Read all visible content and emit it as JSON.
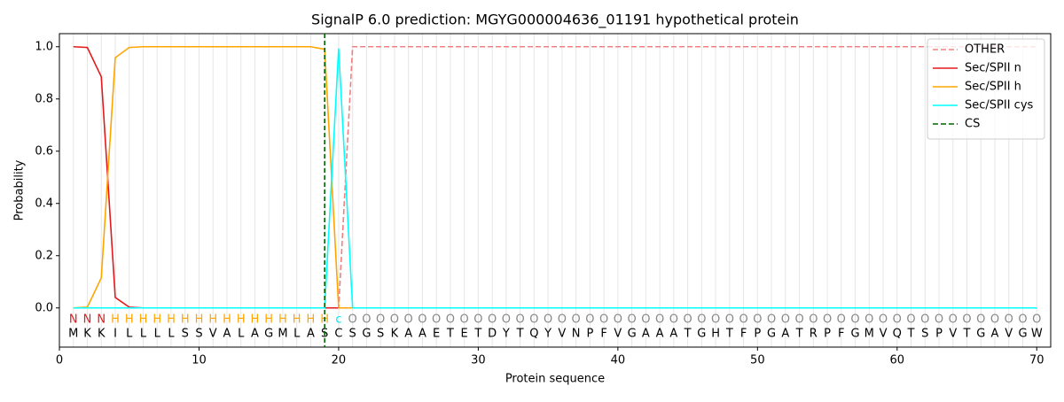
{
  "chart_data": {
    "type": "line",
    "title": "SignalP 6.0 prediction: MGYG000004636_01191 hypothetical protein",
    "xlabel": "Protein sequence",
    "ylabel": "Probability",
    "x": [
      1,
      2,
      3,
      4,
      5,
      6,
      7,
      8,
      9,
      10,
      11,
      12,
      13,
      14,
      15,
      16,
      17,
      18,
      19,
      20,
      21,
      22,
      23,
      24,
      25,
      26,
      27,
      28,
      29,
      30,
      31,
      32,
      33,
      34,
      35,
      36,
      37,
      38,
      39,
      40,
      41,
      42,
      43,
      44,
      45,
      46,
      47,
      48,
      49,
      50,
      51,
      52,
      53,
      54,
      55,
      56,
      57,
      58,
      59,
      60,
      61,
      62,
      63,
      64,
      65,
      66,
      67,
      68,
      69,
      70
    ],
    "sequence": [
      "M",
      "K",
      "K",
      "I",
      "L",
      "L",
      "L",
      "L",
      "S",
      "S",
      "V",
      "A",
      "L",
      "A",
      "G",
      "M",
      "L",
      "A",
      "S",
      "C",
      "S",
      "G",
      "S",
      "K",
      "A",
      "A",
      "E",
      "T",
      "E",
      "T",
      "D",
      "Y",
      "T",
      "Q",
      "Y",
      "V",
      "N",
      "P",
      "F",
      "V",
      "G",
      "A",
      "A",
      "A",
      "T",
      "G",
      "H",
      "T",
      "F",
      "P",
      "G",
      "A",
      "T",
      "R",
      "P",
      "F",
      "G",
      "M",
      "V",
      "Q",
      "T",
      "S",
      "P",
      "V",
      "T",
      "G",
      "A",
      "V",
      "G",
      "W"
    ],
    "region_labels": [
      "N",
      "N",
      "N",
      "H",
      "H",
      "H",
      "H",
      "H",
      "H",
      "H",
      "H",
      "H",
      "H",
      "H",
      "H",
      "H",
      "H",
      "H",
      "H",
      "c",
      "O",
      "O",
      "O",
      "O",
      "O",
      "O",
      "O",
      "O",
      "O",
      "O",
      "O",
      "O",
      "O",
      "O",
      "O",
      "O",
      "O",
      "O",
      "O",
      "O",
      "O",
      "O",
      "O",
      "O",
      "O",
      "O",
      "O",
      "O",
      "O",
      "O",
      "O",
      "O",
      "O",
      "O",
      "O",
      "O",
      "O",
      "O",
      "O",
      "O",
      "O",
      "O",
      "O",
      "O",
      "O",
      "O",
      "O",
      "O",
      "O",
      "O"
    ],
    "region_colors": {
      "N": "#e31a1c",
      "H": "#ffa500",
      "c": "#00e5ee",
      "O": "#888888"
    },
    "series": [
      {
        "name": "OTHER",
        "color": "#f08080",
        "dash": true,
        "values": [
          0,
          0,
          0,
          0,
          0,
          0,
          0,
          0,
          0,
          0,
          0,
          0,
          0,
          0,
          0,
          0,
          0,
          0,
          0,
          0,
          1,
          1,
          1,
          1,
          1,
          1,
          1,
          1,
          1,
          1,
          1,
          1,
          1,
          1,
          1,
          1,
          1,
          1,
          1,
          1,
          1,
          1,
          1,
          1,
          1,
          1,
          1,
          1,
          1,
          1,
          1,
          1,
          1,
          1,
          1,
          1,
          1,
          1,
          1,
          1,
          1,
          1,
          1,
          1,
          1,
          1,
          1,
          1,
          1,
          1
        ]
      },
      {
        "name": "Sec/SPII n",
        "color": "#e31a1c",
        "values": [
          1,
          0.997,
          0.885,
          0.04,
          0.003,
          0,
          0,
          0,
          0,
          0,
          0,
          0,
          0,
          0,
          0,
          0,
          0,
          0,
          0,
          0,
          0,
          0,
          0,
          0,
          0,
          0,
          0,
          0,
          0,
          0,
          0,
          0,
          0,
          0,
          0,
          0,
          0,
          0,
          0,
          0,
          0,
          0,
          0,
          0,
          0,
          0,
          0,
          0,
          0,
          0,
          0,
          0,
          0,
          0,
          0,
          0,
          0,
          0,
          0,
          0,
          0,
          0,
          0,
          0,
          0,
          0,
          0,
          0,
          0,
          0
        ]
      },
      {
        "name": "Sec/SPII h",
        "color": "#ffa500",
        "values": [
          0,
          0.003,
          0.115,
          0.958,
          0.997,
          1,
          1,
          1,
          1,
          1,
          1,
          1,
          1,
          1,
          1,
          1,
          1,
          1,
          0.99,
          0,
          0,
          0,
          0,
          0,
          0,
          0,
          0,
          0,
          0,
          0,
          0,
          0,
          0,
          0,
          0,
          0,
          0,
          0,
          0,
          0,
          0,
          0,
          0,
          0,
          0,
          0,
          0,
          0,
          0,
          0,
          0,
          0,
          0,
          0,
          0,
          0,
          0,
          0,
          0,
          0,
          0,
          0,
          0,
          0,
          0,
          0,
          0,
          0,
          0,
          0
        ]
      },
      {
        "name": "Sec/SPII cys",
        "color": "#00ffff",
        "values": [
          0,
          0,
          0,
          0,
          0,
          0,
          0,
          0,
          0,
          0,
          0,
          0,
          0,
          0,
          0,
          0,
          0,
          0,
          0,
          0.993,
          0,
          0,
          0,
          0,
          0,
          0,
          0,
          0,
          0,
          0,
          0,
          0,
          0,
          0,
          0,
          0,
          0,
          0,
          0,
          0,
          0,
          0,
          0,
          0,
          0,
          0,
          0,
          0,
          0,
          0,
          0,
          0,
          0,
          0,
          0,
          0,
          0,
          0,
          0,
          0,
          0,
          0,
          0,
          0,
          0,
          0,
          0,
          0,
          0,
          0
        ]
      }
    ],
    "cs": {
      "name": "CS",
      "x": 19,
      "color": "#006400"
    },
    "xlim": [
      0,
      71
    ],
    "ylim": [
      -0.15,
      1.05
    ],
    "xticks": [
      0,
      10,
      20,
      30,
      40,
      50,
      60,
      70
    ],
    "yticks": [
      {
        "value": 0,
        "label": "0.0"
      },
      0.2,
      0.4,
      0.6,
      0.8,
      {
        "value": 1,
        "label": "1.0"
      }
    ],
    "legend": "upper right"
  }
}
